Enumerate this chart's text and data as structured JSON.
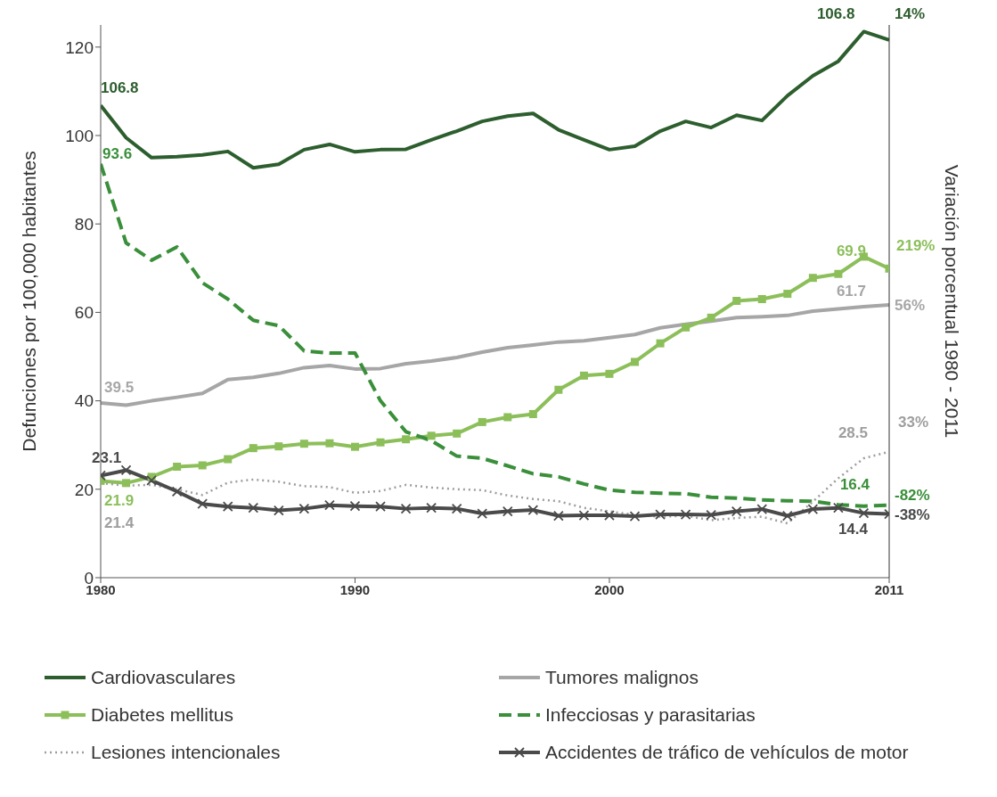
{
  "chart_data": {
    "type": "line",
    "ylabel": "Defunciones por 100,000 habitantes",
    "y2label": "Variación porcentual 1980 - 2011",
    "x": [
      1980,
      1981,
      1982,
      1983,
      1984,
      1985,
      1986,
      1987,
      1988,
      1989,
      1990,
      1991,
      1992,
      1993,
      1994,
      1995,
      1996,
      1997,
      1998,
      1999,
      2000,
      2001,
      2002,
      2003,
      2004,
      2005,
      2006,
      2007,
      2008,
      2009,
      2010,
      2011
    ],
    "xlim": [
      1980,
      2011
    ],
    "xticks": [
      1980,
      1990,
      2000,
      2011
    ],
    "ylim": [
      0,
      125
    ],
    "yticks": [
      0,
      20,
      40,
      60,
      80,
      100,
      120
    ],
    "grid": false,
    "legend": "bottom",
    "marker": "none",
    "line_style": "solid",
    "series": [
      {
        "name": "Cardiovasculares",
        "color": "#2d5e2e",
        "values": [
          106.8,
          99.5,
          95,
          95.2,
          95.6,
          96.4,
          92.7,
          93.5,
          96.8,
          98,
          96.3,
          96.8,
          96.9,
          99,
          101,
          103.2,
          104.4,
          105,
          101.3,
          99,
          96.8,
          97.6,
          101,
          103.2,
          101.8,
          104.6,
          103.4,
          109,
          113.5,
          116.8,
          123.5,
          121.6
        ]
      },
      {
        "name": "Tumores malignos",
        "color": "#a6a6a6",
        "values": [
          39.5,
          39,
          40,
          40.8,
          41.7,
          44.8,
          45.3,
          46.2,
          47.5,
          48,
          47.2,
          47.3,
          48.4,
          49,
          49.8,
          51,
          52,
          52.6,
          53.3,
          53.6,
          54.3,
          55,
          56.5,
          57.3,
          58,
          58.8,
          59,
          59.3,
          60.3,
          60.8,
          61.3,
          61.7
        ]
      },
      {
        "name": "Diabetes mellitus",
        "color": "#8cbf5a",
        "marker": "square",
        "values": [
          21.9,
          21.4,
          22.8,
          25.1,
          25.4,
          26.8,
          29.3,
          29.7,
          30.3,
          30.4,
          29.6,
          30.6,
          31.3,
          32.1,
          32.6,
          35.2,
          36.3,
          37,
          42.5,
          45.7,
          46.1,
          48.8,
          53,
          56.6,
          58.8,
          62.6,
          63,
          64.2,
          67.8,
          68.7,
          72.6,
          69.9
        ]
      },
      {
        "name": "Infecciosas y parasitarias",
        "color": "#3a8f3a",
        "line_style": "dashed",
        "values": [
          93.6,
          75.7,
          71.8,
          74.8,
          66.7,
          63,
          58.2,
          57,
          51.3,
          50.8,
          50.8,
          40,
          33,
          31,
          27.5,
          27,
          25.3,
          23.5,
          22.8,
          21.2,
          19.8,
          19.3,
          19.1,
          19,
          18.2,
          18,
          17.6,
          17.4,
          17.3,
          16.5,
          16.2,
          16.4
        ]
      },
      {
        "name": "Lesiones intencionales",
        "color": "#9e9e9e",
        "line_style": "dotted",
        "values": [
          21.4,
          20.8,
          21,
          20,
          18.7,
          21.5,
          22.2,
          21.7,
          20.7,
          20.5,
          19.2,
          19.6,
          21,
          20.4,
          20,
          19.8,
          18.6,
          17.8,
          17.3,
          15.8,
          15,
          14.2,
          13.8,
          14,
          13,
          13.5,
          13.8,
          12.3,
          17.2,
          22.5,
          27,
          28.5
        ]
      },
      {
        "name": "Accidentes de tráfico de vehículos de motor",
        "color": "#4a4a4a",
        "marker": "cross",
        "values": [
          23.1,
          24.3,
          22,
          19.5,
          16.7,
          16.1,
          15.8,
          15.2,
          15.6,
          16.4,
          16.2,
          16.1,
          15.6,
          15.8,
          15.6,
          14.5,
          15,
          15.3,
          14,
          14.1,
          14.1,
          13.9,
          14.3,
          14.3,
          14.2,
          15,
          15.5,
          14,
          15.5,
          15.8,
          14.6,
          14.4
        ]
      }
    ],
    "annotations": [
      {
        "text": "106.8",
        "x": 1980,
        "y": 106.8
      },
      {
        "text": "93.6",
        "x": 1980,
        "y": 93.6
      },
      {
        "text": "39.5",
        "x": 1980,
        "y": 39.5
      },
      {
        "text": "23.1",
        "x": 1980,
        "y": 23.1
      },
      {
        "text": "21.9",
        "x": 1980,
        "y": 21.9
      },
      {
        "text": "21.4",
        "x": 1980,
        "y": 21.4
      },
      {
        "text": "106.8",
        "x": 2010,
        "y": 123.5
      },
      {
        "text": "69.9",
        "x": 2011,
        "y": 69.9
      },
      {
        "text": "61.7",
        "x": 2011,
        "y": 61.7
      },
      {
        "text": "28.5",
        "x": 2011,
        "y": 28.5
      },
      {
        "text": "16.4",
        "x": 2011,
        "y": 16.4
      },
      {
        "text": "14.4",
        "x": 2011,
        "y": 14.4
      },
      {
        "text": "14%",
        "x": 2011,
        "y": 121.6
      },
      {
        "text": "219%",
        "x": 2011,
        "y": 69.9
      },
      {
        "text": "56%",
        "x": 2011,
        "y": 61.7
      },
      {
        "text": "33%",
        "x": 2011,
        "y": 28.5
      },
      {
        "text": "-82%",
        "x": 2011,
        "y": 16.4
      },
      {
        "text": "-38%",
        "x": 2011,
        "y": 14.4
      }
    ]
  }
}
